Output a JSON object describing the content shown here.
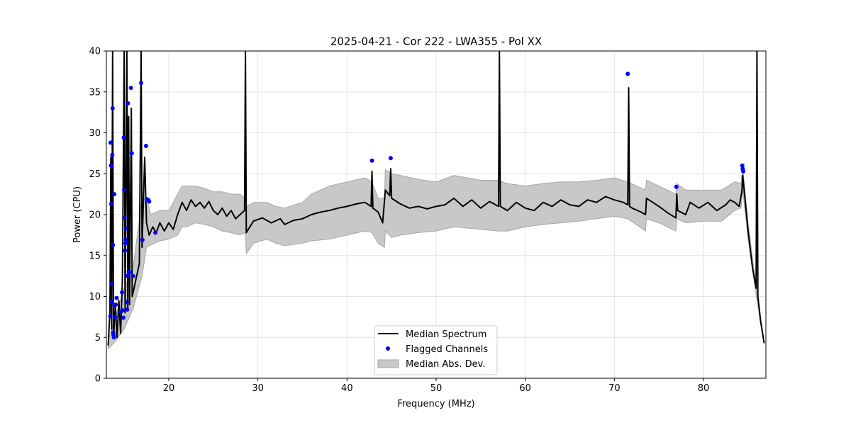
{
  "chart_data": {
    "type": "line",
    "title": "2025-04-21 - Cor 222 - LWA355 - Pol XX",
    "xlabel": "Frequency (MHz)",
    "ylabel": "Power (CPU)",
    "xlim": [
      13,
      87
    ],
    "ylim": [
      0,
      40
    ],
    "xticks": [
      20,
      30,
      40,
      50,
      60,
      70,
      80
    ],
    "yticks": [
      0,
      5,
      10,
      15,
      20,
      25,
      30,
      35,
      40
    ],
    "grid": true,
    "legend_position": "lower-center",
    "legend": {
      "median": "Median Spectrum",
      "flagged": "Flagged Channels",
      "mad": "Median Abs. Dev."
    },
    "colors": {
      "median": "#000000",
      "flagged": "#0000ff",
      "mad_fill": "#c8c8c8",
      "mad_edge": "#a6a6a6"
    },
    "median_spectrum": [
      [
        13.2,
        4.0
      ],
      [
        13.4,
        8.0
      ],
      [
        13.5,
        27.0
      ],
      [
        13.6,
        6.0
      ],
      [
        13.7,
        40.0
      ],
      [
        13.8,
        5.0
      ],
      [
        14.0,
        9.0
      ],
      [
        14.2,
        5.0
      ],
      [
        14.4,
        9.5
      ],
      [
        14.6,
        5.5
      ],
      [
        14.8,
        12.0
      ],
      [
        15.0,
        40.0
      ],
      [
        15.1,
        8.0
      ],
      [
        15.3,
        40.0
      ],
      [
        15.4,
        8.5
      ],
      [
        15.5,
        32.0
      ],
      [
        15.6,
        9.0
      ],
      [
        15.8,
        33.0
      ],
      [
        15.9,
        10.0
      ],
      [
        16.1,
        11.0
      ],
      [
        16.4,
        12.5
      ],
      [
        16.7,
        14.0
      ],
      [
        16.9,
        40.0
      ],
      [
        17.0,
        16.0
      ],
      [
        17.3,
        27.0
      ],
      [
        17.5,
        19.0
      ],
      [
        17.8,
        17.5
      ],
      [
        18.2,
        18.5
      ],
      [
        18.6,
        17.8
      ],
      [
        19.0,
        19.0
      ],
      [
        19.5,
        18.0
      ],
      [
        20.0,
        19.0
      ],
      [
        20.5,
        18.2
      ],
      [
        21.0,
        20.0
      ],
      [
        21.5,
        21.5
      ],
      [
        22.0,
        20.5
      ],
      [
        22.5,
        21.8
      ],
      [
        23.0,
        21.0
      ],
      [
        23.5,
        21.5
      ],
      [
        24.0,
        20.8
      ],
      [
        24.5,
        21.6
      ],
      [
        25.0,
        20.5
      ],
      [
        25.5,
        20.0
      ],
      [
        26.0,
        20.8
      ],
      [
        26.5,
        19.8
      ],
      [
        27.0,
        20.5
      ],
      [
        27.5,
        19.5
      ],
      [
        28.0,
        20.0
      ],
      [
        28.5,
        20.5
      ],
      [
        28.6,
        40.0
      ],
      [
        28.7,
        17.8
      ],
      [
        29.5,
        19.2
      ],
      [
        30.5,
        19.6
      ],
      [
        31.5,
        19.0
      ],
      [
        32.5,
        19.5
      ],
      [
        33.0,
        18.8
      ],
      [
        34.0,
        19.3
      ],
      [
        35.0,
        19.5
      ],
      [
        36.0,
        20.0
      ],
      [
        37.0,
        20.3
      ],
      [
        38.0,
        20.5
      ],
      [
        39.0,
        20.8
      ],
      [
        40.0,
        21.0
      ],
      [
        41.0,
        21.3
      ],
      [
        42.0,
        21.5
      ],
      [
        42.7,
        21.0
      ],
      [
        42.8,
        25.3
      ],
      [
        42.9,
        20.8
      ],
      [
        43.5,
        20.3
      ],
      [
        44.0,
        19.0
      ],
      [
        44.3,
        23.0
      ],
      [
        44.8,
        22.3
      ],
      [
        44.9,
        25.6
      ],
      [
        45.0,
        22.0
      ],
      [
        46.0,
        21.3
      ],
      [
        47.0,
        20.8
      ],
      [
        48.0,
        21.0
      ],
      [
        49.0,
        20.7
      ],
      [
        50.0,
        21.0
      ],
      [
        51.0,
        21.2
      ],
      [
        52.0,
        22.0
      ],
      [
        53.0,
        21.0
      ],
      [
        54.0,
        21.8
      ],
      [
        55.0,
        20.8
      ],
      [
        56.0,
        21.6
      ],
      [
        57.0,
        21.0
      ],
      [
        57.1,
        40.0
      ],
      [
        57.2,
        21.0
      ],
      [
        58.0,
        20.5
      ],
      [
        59.0,
        21.5
      ],
      [
        60.0,
        20.8
      ],
      [
        61.0,
        20.5
      ],
      [
        62.0,
        21.5
      ],
      [
        63.0,
        21.0
      ],
      [
        64.0,
        21.8
      ],
      [
        65.0,
        21.2
      ],
      [
        66.0,
        21.0
      ],
      [
        67.0,
        21.8
      ],
      [
        68.0,
        21.5
      ],
      [
        69.0,
        22.2
      ],
      [
        70.0,
        21.8
      ],
      [
        71.0,
        21.5
      ],
      [
        71.5,
        21.2
      ],
      [
        71.6,
        35.5
      ],
      [
        71.7,
        21.0
      ],
      [
        72.0,
        20.8
      ],
      [
        73.0,
        20.3
      ],
      [
        73.5,
        20.0
      ],
      [
        73.6,
        22.0
      ],
      [
        75.0,
        21.0
      ],
      [
        76.0,
        20.2
      ],
      [
        76.9,
        19.6
      ],
      [
        77.0,
        22.5
      ],
      [
        77.1,
        20.5
      ],
      [
        78.0,
        20.0
      ],
      [
        78.5,
        21.5
      ],
      [
        79.5,
        20.8
      ],
      [
        80.5,
        21.5
      ],
      [
        81.5,
        20.5
      ],
      [
        82.5,
        21.2
      ],
      [
        83.0,
        21.8
      ],
      [
        83.5,
        21.5
      ],
      [
        84.0,
        21.0
      ],
      [
        84.3,
        22.8
      ],
      [
        84.4,
        24.8
      ],
      [
        85.0,
        18.0
      ],
      [
        85.5,
        13.5
      ],
      [
        85.9,
        11.0
      ],
      [
        86.0,
        40.0
      ],
      [
        86.1,
        10.0
      ],
      [
        86.4,
        7.0
      ],
      [
        86.8,
        4.3
      ]
    ],
    "mad_band": [
      [
        13.2,
        3.6,
        4.5
      ],
      [
        14.0,
        4.5,
        7.5
      ],
      [
        15.0,
        6.0,
        11.0
      ],
      [
        16.0,
        8.5,
        13.5
      ],
      [
        17.0,
        12.5,
        22.0
      ],
      [
        17.5,
        16.0,
        22.0
      ],
      [
        18.0,
        16.3,
        20.0
      ],
      [
        19.0,
        16.8,
        20.5
      ],
      [
        20.0,
        17.0,
        20.5
      ],
      [
        21.0,
        17.5,
        22.5
      ],
      [
        21.5,
        18.5,
        23.5
      ],
      [
        22.0,
        18.5,
        23.5
      ],
      [
        23.0,
        19.0,
        23.5
      ],
      [
        24.0,
        18.8,
        23.2
      ],
      [
        25.0,
        18.5,
        22.8
      ],
      [
        26.0,
        18.0,
        22.8
      ],
      [
        27.0,
        17.8,
        22.5
      ],
      [
        28.0,
        17.5,
        22.5
      ],
      [
        28.6,
        17.8,
        22.0
      ],
      [
        28.7,
        15.2,
        21.0
      ],
      [
        29.5,
        16.5,
        21.5
      ],
      [
        31.0,
        17.0,
        21.5
      ],
      [
        32.0,
        16.5,
        21.0
      ],
      [
        33.0,
        16.2,
        20.8
      ],
      [
        35.0,
        16.5,
        21.5
      ],
      [
        36.0,
        16.8,
        22.5
      ],
      [
        38.0,
        17.0,
        23.5
      ],
      [
        40.0,
        17.5,
        24.0
      ],
      [
        42.0,
        18.0,
        24.5
      ],
      [
        42.8,
        17.8,
        24.0
      ],
      [
        43.5,
        16.5,
        22.0
      ],
      [
        44.2,
        16.0,
        22.0
      ],
      [
        44.3,
        18.0,
        25.5
      ],
      [
        45.0,
        17.2,
        25.0
      ],
      [
        46.0,
        17.5,
        24.8
      ],
      [
        48.0,
        17.8,
        24.3
      ],
      [
        50.0,
        18.0,
        24.0
      ],
      [
        52.0,
        18.5,
        24.8
      ],
      [
        55.0,
        18.2,
        24.2
      ],
      [
        57.0,
        18.0,
        24.2
      ],
      [
        58.0,
        18.0,
        23.8
      ],
      [
        60.0,
        18.5,
        23.5
      ],
      [
        62.0,
        18.8,
        23.8
      ],
      [
        64.0,
        19.0,
        24.0
      ],
      [
        66.0,
        19.2,
        24.0
      ],
      [
        68.0,
        19.5,
        24.2
      ],
      [
        70.0,
        19.8,
        24.5
      ],
      [
        71.5,
        19.5,
        24.0
      ],
      [
        73.5,
        18.0,
        23.0
      ],
      [
        73.6,
        19.5,
        24.2
      ],
      [
        75.0,
        19.0,
        23.5
      ],
      [
        76.9,
        18.0,
        22.5
      ],
      [
        77.0,
        19.5,
        23.8
      ],
      [
        78.0,
        19.0,
        23.0
      ],
      [
        80.0,
        19.2,
        23.0
      ],
      [
        82.0,
        19.2,
        23.0
      ],
      [
        83.5,
        20.5,
        24.0
      ],
      [
        84.2,
        20.8,
        23.8
      ],
      [
        84.4,
        23.0,
        25.8
      ],
      [
        85.0,
        17.0,
        19.0
      ],
      [
        86.0,
        9.5,
        10.5
      ],
      [
        86.8,
        4.1,
        4.5
      ]
    ],
    "flagged_channels": [
      [
        13.45,
        7.6
      ],
      [
        13.48,
        28.8
      ],
      [
        13.52,
        26.0
      ],
      [
        13.55,
        21.3
      ],
      [
        13.58,
        11.5
      ],
      [
        13.62,
        9.3
      ],
      [
        13.66,
        27.3
      ],
      [
        13.7,
        33.0
      ],
      [
        13.73,
        16.3
      ],
      [
        13.76,
        5.6
      ],
      [
        13.8,
        5.3
      ],
      [
        13.84,
        5.0
      ],
      [
        13.88,
        22.5
      ],
      [
        13.92,
        8.9
      ],
      [
        13.97,
        7.5
      ],
      [
        14.05,
        9.0
      ],
      [
        14.15,
        9.8
      ],
      [
        14.6,
        8.1
      ],
      [
        14.75,
        10.5
      ],
      [
        14.82,
        8.3
      ],
      [
        14.9,
        7.4
      ],
      [
        14.95,
        29.4
      ],
      [
        15.0,
        23.0
      ],
      [
        15.05,
        19.6
      ],
      [
        15.1,
        15.6
      ],
      [
        15.15,
        16.5
      ],
      [
        15.18,
        16.9
      ],
      [
        15.22,
        18.3
      ],
      [
        15.28,
        9.3
      ],
      [
        15.33,
        8.4
      ],
      [
        15.38,
        12.5
      ],
      [
        15.42,
        33.6
      ],
      [
        15.5,
        13.0
      ],
      [
        15.6,
        13.0
      ],
      [
        15.75,
        35.5
      ],
      [
        15.85,
        27.5
      ],
      [
        16.0,
        12.5
      ],
      [
        16.9,
        36.1
      ],
      [
        17.05,
        16.9
      ],
      [
        17.45,
        28.4
      ],
      [
        17.55,
        21.9
      ],
      [
        17.7,
        21.8
      ],
      [
        17.8,
        21.6
      ],
      [
        18.5,
        17.8
      ],
      [
        42.8,
        26.6
      ],
      [
        44.9,
        26.9
      ],
      [
        71.5,
        37.2
      ],
      [
        76.95,
        23.4
      ],
      [
        84.35,
        26.0
      ],
      [
        84.4,
        25.6
      ],
      [
        84.45,
        25.3
      ]
    ]
  }
}
